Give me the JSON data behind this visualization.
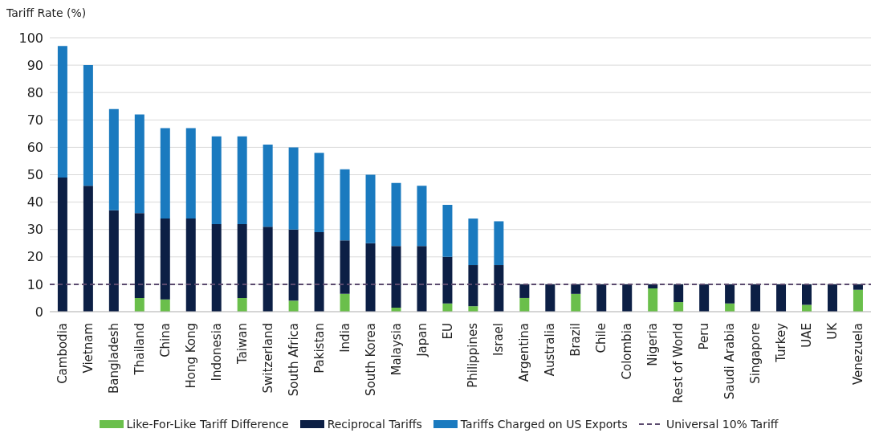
{
  "chart_data": {
    "type": "bar",
    "stacked": true,
    "ylabel": "Tariff Rate (%)",
    "categories": [
      "Cambodia",
      "Vietnam",
      "Bangladesh",
      "Thailand",
      "China",
      "Hong Kong",
      "Indonesia",
      "Taiwan",
      "Switzerland",
      "South Africa",
      "Pakistan",
      "India",
      "South Korea",
      "Malaysia",
      "Japan",
      "EU",
      "Philippines",
      "Israel",
      "Argentina",
      "Australia",
      "Brazil",
      "Chile",
      "Colombia",
      "Nigeria",
      "Rest of World",
      "Peru",
      "Saudi Arabia",
      "Singapore",
      "Turkey",
      "UAE",
      "UK",
      "Venezuela"
    ],
    "series": [
      {
        "name": "Like-For-Like Tariff Difference",
        "color": "#6abf4b",
        "values": [
          null,
          null,
          null,
          5,
          4.5,
          null,
          null,
          5,
          null,
          4,
          null,
          6.5,
          null,
          1.5,
          null,
          3,
          2,
          null,
          5,
          null,
          6.5,
          null,
          null,
          8.5,
          3.5,
          null,
          3,
          null,
          null,
          2.5,
          null,
          8
        ]
      },
      {
        "name": "Reciprocal Tariffs",
        "color": "#0c1f45",
        "values": [
          49,
          46,
          37,
          31,
          29.5,
          34,
          32,
          27,
          31,
          26,
          29,
          19.5,
          25,
          22.5,
          24,
          17,
          15,
          17,
          5,
          10,
          3.5,
          10,
          10,
          1.5,
          6.5,
          10,
          7,
          10,
          10,
          7.5,
          10,
          2
        ]
      },
      {
        "name": "Tariffs Charged on US Exports",
        "color": "#1a7abf",
        "values": [
          48,
          44,
          37,
          36,
          33,
          33,
          32,
          32,
          30,
          30,
          29,
          26,
          25,
          23,
          22,
          19,
          17,
          16,
          null,
          null,
          null,
          null,
          null,
          null,
          null,
          null,
          null,
          null,
          null,
          null,
          null,
          null
        ]
      }
    ],
    "ylim": [
      0,
      100
    ],
    "yticks": [
      0,
      10,
      20,
      30,
      40,
      50,
      60,
      70,
      80,
      90,
      100
    ],
    "grid": "y",
    "legend": "bottom",
    "ref_lines": [
      {
        "axis": "y",
        "value": 10,
        "label": "Universal 10% Tariff",
        "color": "#5b4a6e",
        "line_style": "dashed"
      }
    ]
  }
}
